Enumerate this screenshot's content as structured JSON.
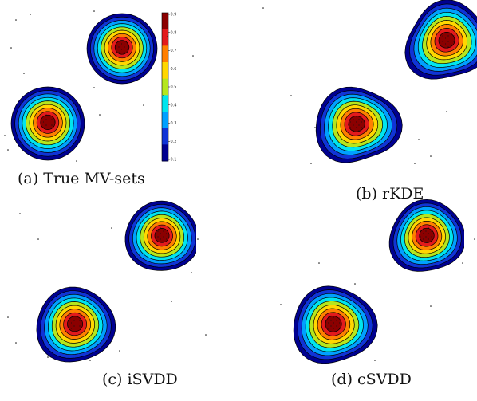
{
  "panels": [
    {
      "id": "a",
      "caption": "(a) True MV-sets"
    },
    {
      "id": "b",
      "caption": "(b) rKDE"
    },
    {
      "id": "c",
      "caption": "(c) iSVDD"
    },
    {
      "id": "d",
      "caption": "(d) cSVDD"
    }
  ],
  "colorbar": {
    "ticks": [
      "0.9",
      "0.8",
      "0.7",
      "0.6",
      "0.5",
      "0.4",
      "0.3",
      "0.2",
      "0.1"
    ],
    "palette": [
      "#8b0000",
      "#e31a1c",
      "#ff7f00",
      "#ffd700",
      "#b5e61d",
      "#00e5ee",
      "#00a0ff",
      "#1034d6",
      "#000090"
    ]
  }
}
